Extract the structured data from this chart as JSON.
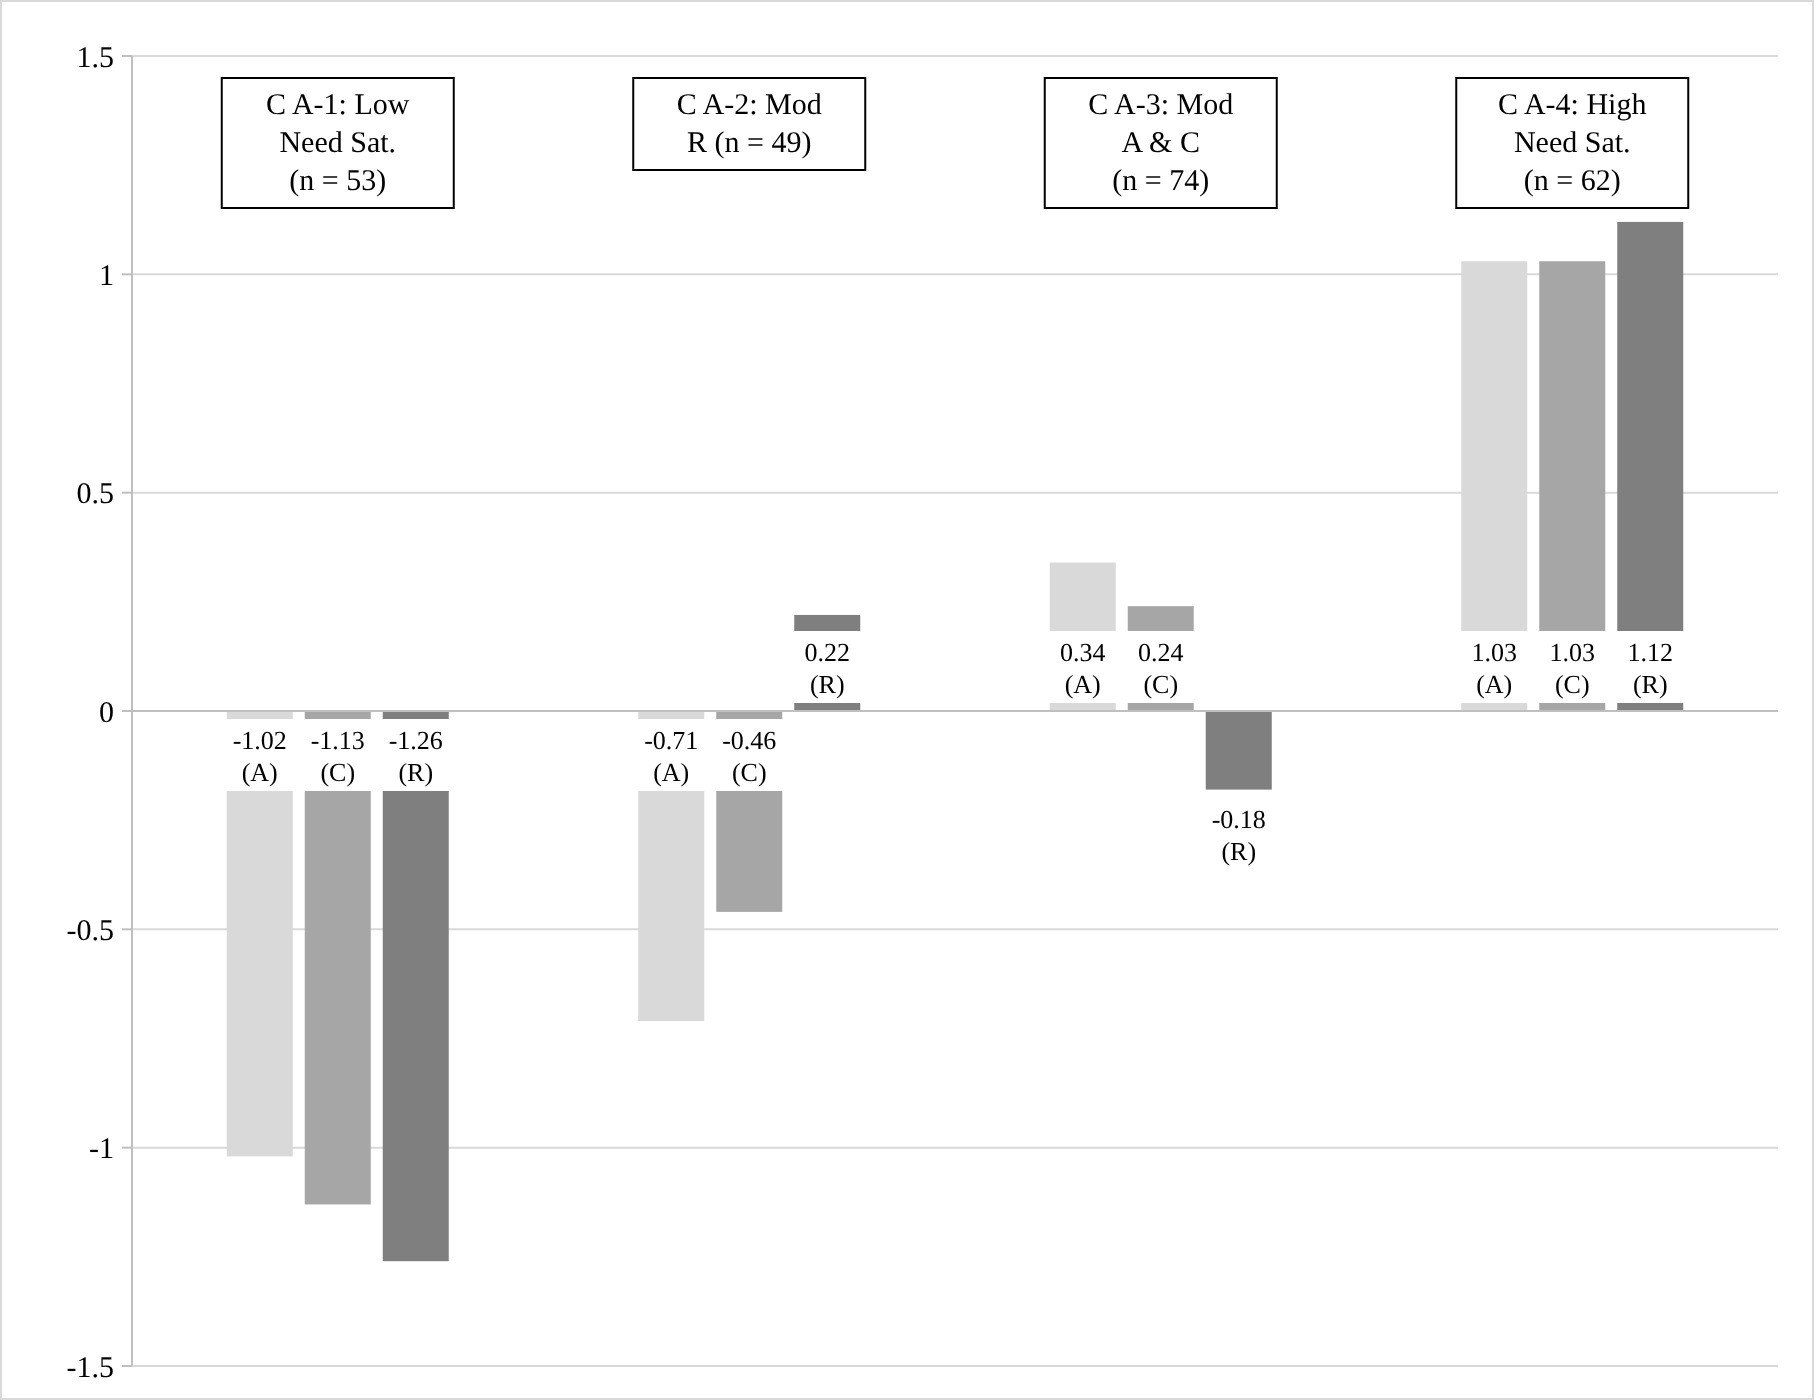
{
  "chart_data": {
    "type": "bar",
    "categories": [
      "C A-1: Low Need Sat. (n = 53)",
      "C A-2: Mod R (n = 49)",
      "C A-3: Mod A & C (n = 74)",
      "C A-4: High Need Sat. (n = 62)"
    ],
    "series": [
      {
        "name": "(A)",
        "color": "#d9d9d9",
        "values": [
          -1.02,
          -0.71,
          0.34,
          1.03
        ]
      },
      {
        "name": "(C)",
        "color": "#a6a6a6",
        "values": [
          -1.13,
          -0.46,
          0.24,
          1.03
        ]
      },
      {
        "name": "(R)",
        "color": "#7f7f7f",
        "values": [
          -1.26,
          0.22,
          -0.18,
          1.12
        ]
      }
    ],
    "ylim": [
      -1.5,
      1.5
    ],
    "yticks": [
      -1.5,
      -1,
      -0.5,
      0,
      0.5,
      1,
      1.5
    ],
    "grid": "y",
    "data_labels": true
  }
}
